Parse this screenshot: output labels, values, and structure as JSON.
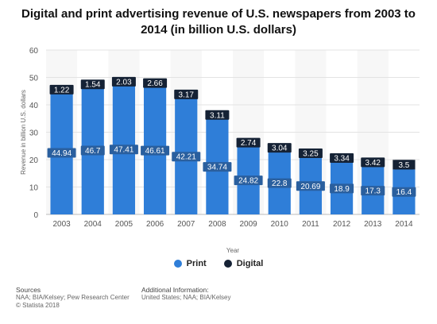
{
  "chart_data": {
    "type": "bar",
    "stacked": true,
    "title_lines": [
      "Digital and print advertising revenue of U.S. newspapers from 2003 to",
      "2014 (in billion U.S. dollars)"
    ],
    "xlabel": "Year",
    "ylabel": "Revenue in billion U.S. dollars",
    "ylim": [
      0,
      60
    ],
    "yticks": [
      "0",
      "10",
      "20",
      "30",
      "40",
      "50",
      "60"
    ],
    "categories": [
      "2003",
      "2004",
      "2005",
      "2006",
      "2007",
      "2008",
      "2009",
      "2010",
      "2011",
      "2012",
      "2013",
      "2014"
    ],
    "series": [
      {
        "name": "Print",
        "color": "#2f7ed8",
        "values": [
          44.94,
          46.7,
          47.41,
          46.61,
          42.21,
          34.74,
          24.82,
          22.8,
          20.69,
          18.9,
          17.3,
          16.4
        ],
        "labels": [
          "44.94",
          "46.7",
          "47.41",
          "46.61",
          "42.21",
          "34.74",
          "24.82",
          "22.8",
          "20.69",
          "18.9",
          "17.3",
          "16.4"
        ]
      },
      {
        "name": "Digital",
        "color": "#152235",
        "values": [
          1.22,
          1.54,
          2.03,
          2.66,
          3.17,
          3.11,
          2.74,
          3.04,
          3.25,
          3.34,
          3.42,
          3.5
        ],
        "labels": [
          "1.22",
          "1.54",
          "2.03",
          "2.66",
          "3.17",
          "3.11",
          "2.74",
          "3.04",
          "3.25",
          "3.34",
          "3.42",
          "3.5"
        ]
      }
    ],
    "grid": true,
    "legend_position": "bottom-center"
  },
  "footer": {
    "sources_heading": "Sources",
    "sources_line1": "NAA; BIA/Kelsey; Pew Research Center",
    "sources_line2": "© Statista 2018",
    "additional_heading": "Additional Information:",
    "additional_line1": "United States; NAA; BIA/Kelsey"
  }
}
